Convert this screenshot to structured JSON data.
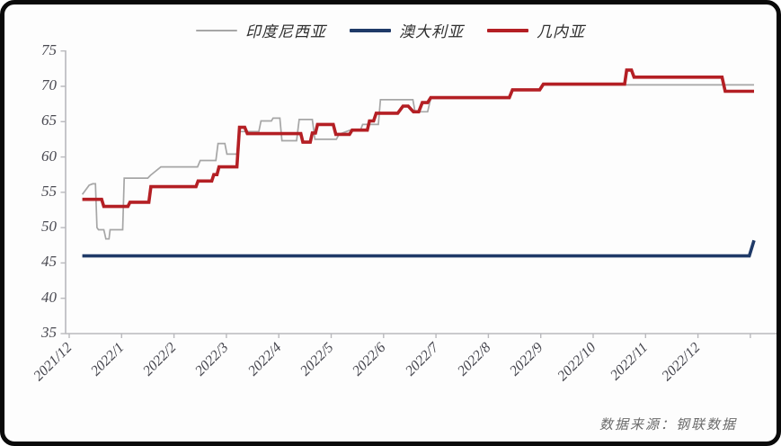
{
  "source_note": "数据来源：钢联数据",
  "chart_data": {
    "type": "line",
    "title": "",
    "xlabel": "",
    "ylabel": "",
    "ylim": [
      35,
      75
    ],
    "y_ticks": [
      35,
      40,
      45,
      50,
      55,
      60,
      65,
      70,
      75
    ],
    "x_tick_labels": [
      "2021/12",
      "2022/1",
      "2022/2",
      "2022/3",
      "2022/4",
      "2022/5",
      "2022/6",
      "2022/7",
      "2022/8",
      "2022/9",
      "2022/10",
      "2022/11",
      "2022/12"
    ],
    "x_unit": "months-since-2021/12",
    "grid": "off",
    "legend_position": "top-center",
    "axis_color": "#b9b9bd",
    "series": [
      {
        "name": "印度尼西亚",
        "color": "#a6a6a6",
        "points": [
          [
            0.25,
            54.7
          ],
          [
            0.38,
            56.0
          ],
          [
            0.45,
            56.2
          ],
          [
            0.5,
            56.2
          ],
          [
            0.53,
            50.0
          ],
          [
            0.56,
            49.7
          ],
          [
            0.66,
            49.7
          ],
          [
            0.68,
            49.1
          ],
          [
            0.7,
            48.4
          ],
          [
            0.76,
            48.4
          ],
          [
            0.78,
            49.7
          ],
          [
            1.02,
            49.7
          ],
          [
            1.05,
            57.0
          ],
          [
            1.5,
            57.0
          ],
          [
            1.55,
            57.4
          ],
          [
            1.75,
            58.6
          ],
          [
            2.45,
            58.6
          ],
          [
            2.5,
            59.5
          ],
          [
            2.8,
            59.5
          ],
          [
            2.84,
            61.9
          ],
          [
            2.97,
            61.9
          ],
          [
            3.01,
            60.4
          ],
          [
            3.2,
            60.4
          ],
          [
            3.24,
            63.6
          ],
          [
            3.62,
            63.6
          ],
          [
            3.66,
            65.1
          ],
          [
            3.86,
            65.1
          ],
          [
            3.89,
            65.5
          ],
          [
            4.02,
            65.5
          ],
          [
            4.06,
            62.3
          ],
          [
            4.34,
            62.3
          ],
          [
            4.39,
            65.3
          ],
          [
            4.64,
            65.3
          ],
          [
            4.69,
            62.5
          ],
          [
            5.1,
            62.5
          ],
          [
            5.15,
            63.2
          ],
          [
            5.36,
            63.8
          ],
          [
            5.56,
            63.8
          ],
          [
            5.6,
            64.6
          ],
          [
            5.9,
            64.6
          ],
          [
            5.94,
            68.1
          ],
          [
            6.56,
            68.1
          ],
          [
            6.6,
            66.4
          ],
          [
            6.84,
            66.4
          ],
          [
            6.9,
            68.3
          ],
          [
            8.4,
            68.3
          ],
          [
            8.45,
            69.5
          ],
          [
            8.97,
            69.5
          ],
          [
            9.02,
            70.2
          ],
          [
            13.07,
            70.2
          ]
        ]
      },
      {
        "name": "澳大利亚",
        "color": "#1f3a68",
        "points": [
          [
            0.25,
            46.0
          ],
          [
            12.98,
            46.0
          ],
          [
            13.07,
            48.2
          ]
        ]
      },
      {
        "name": "几内亚",
        "color": "#b41f24",
        "points": [
          [
            0.25,
            54.0
          ],
          [
            0.62,
            54.0
          ],
          [
            0.66,
            53.0
          ],
          [
            1.12,
            53.0
          ],
          [
            1.16,
            53.6
          ],
          [
            1.52,
            53.6
          ],
          [
            1.56,
            55.8
          ],
          [
            2.42,
            55.8
          ],
          [
            2.46,
            56.6
          ],
          [
            2.72,
            56.6
          ],
          [
            2.76,
            57.5
          ],
          [
            2.82,
            57.5
          ],
          [
            2.86,
            58.6
          ],
          [
            3.2,
            58.6
          ],
          [
            3.25,
            64.2
          ],
          [
            3.35,
            64.2
          ],
          [
            3.4,
            63.3
          ],
          [
            4.42,
            63.3
          ],
          [
            4.46,
            62.1
          ],
          [
            4.6,
            62.1
          ],
          [
            4.64,
            63.4
          ],
          [
            4.7,
            63.4
          ],
          [
            4.74,
            64.6
          ],
          [
            5.04,
            64.6
          ],
          [
            5.09,
            63.2
          ],
          [
            5.35,
            63.2
          ],
          [
            5.4,
            63.8
          ],
          [
            5.69,
            63.8
          ],
          [
            5.73,
            65.1
          ],
          [
            5.81,
            65.1
          ],
          [
            5.86,
            66.2
          ],
          [
            6.27,
            66.2
          ],
          [
            6.37,
            67.2
          ],
          [
            6.47,
            67.2
          ],
          [
            6.57,
            66.4
          ],
          [
            6.67,
            66.4
          ],
          [
            6.74,
            67.7
          ],
          [
            6.84,
            67.7
          ],
          [
            6.9,
            68.4
          ],
          [
            8.4,
            68.4
          ],
          [
            8.46,
            69.5
          ],
          [
            8.98,
            69.5
          ],
          [
            9.05,
            70.3
          ],
          [
            10.6,
            70.3
          ],
          [
            10.64,
            72.3
          ],
          [
            10.73,
            72.3
          ],
          [
            10.78,
            71.3
          ],
          [
            12.46,
            71.3
          ],
          [
            12.52,
            69.3
          ],
          [
            13.07,
            69.3
          ]
        ]
      }
    ]
  }
}
